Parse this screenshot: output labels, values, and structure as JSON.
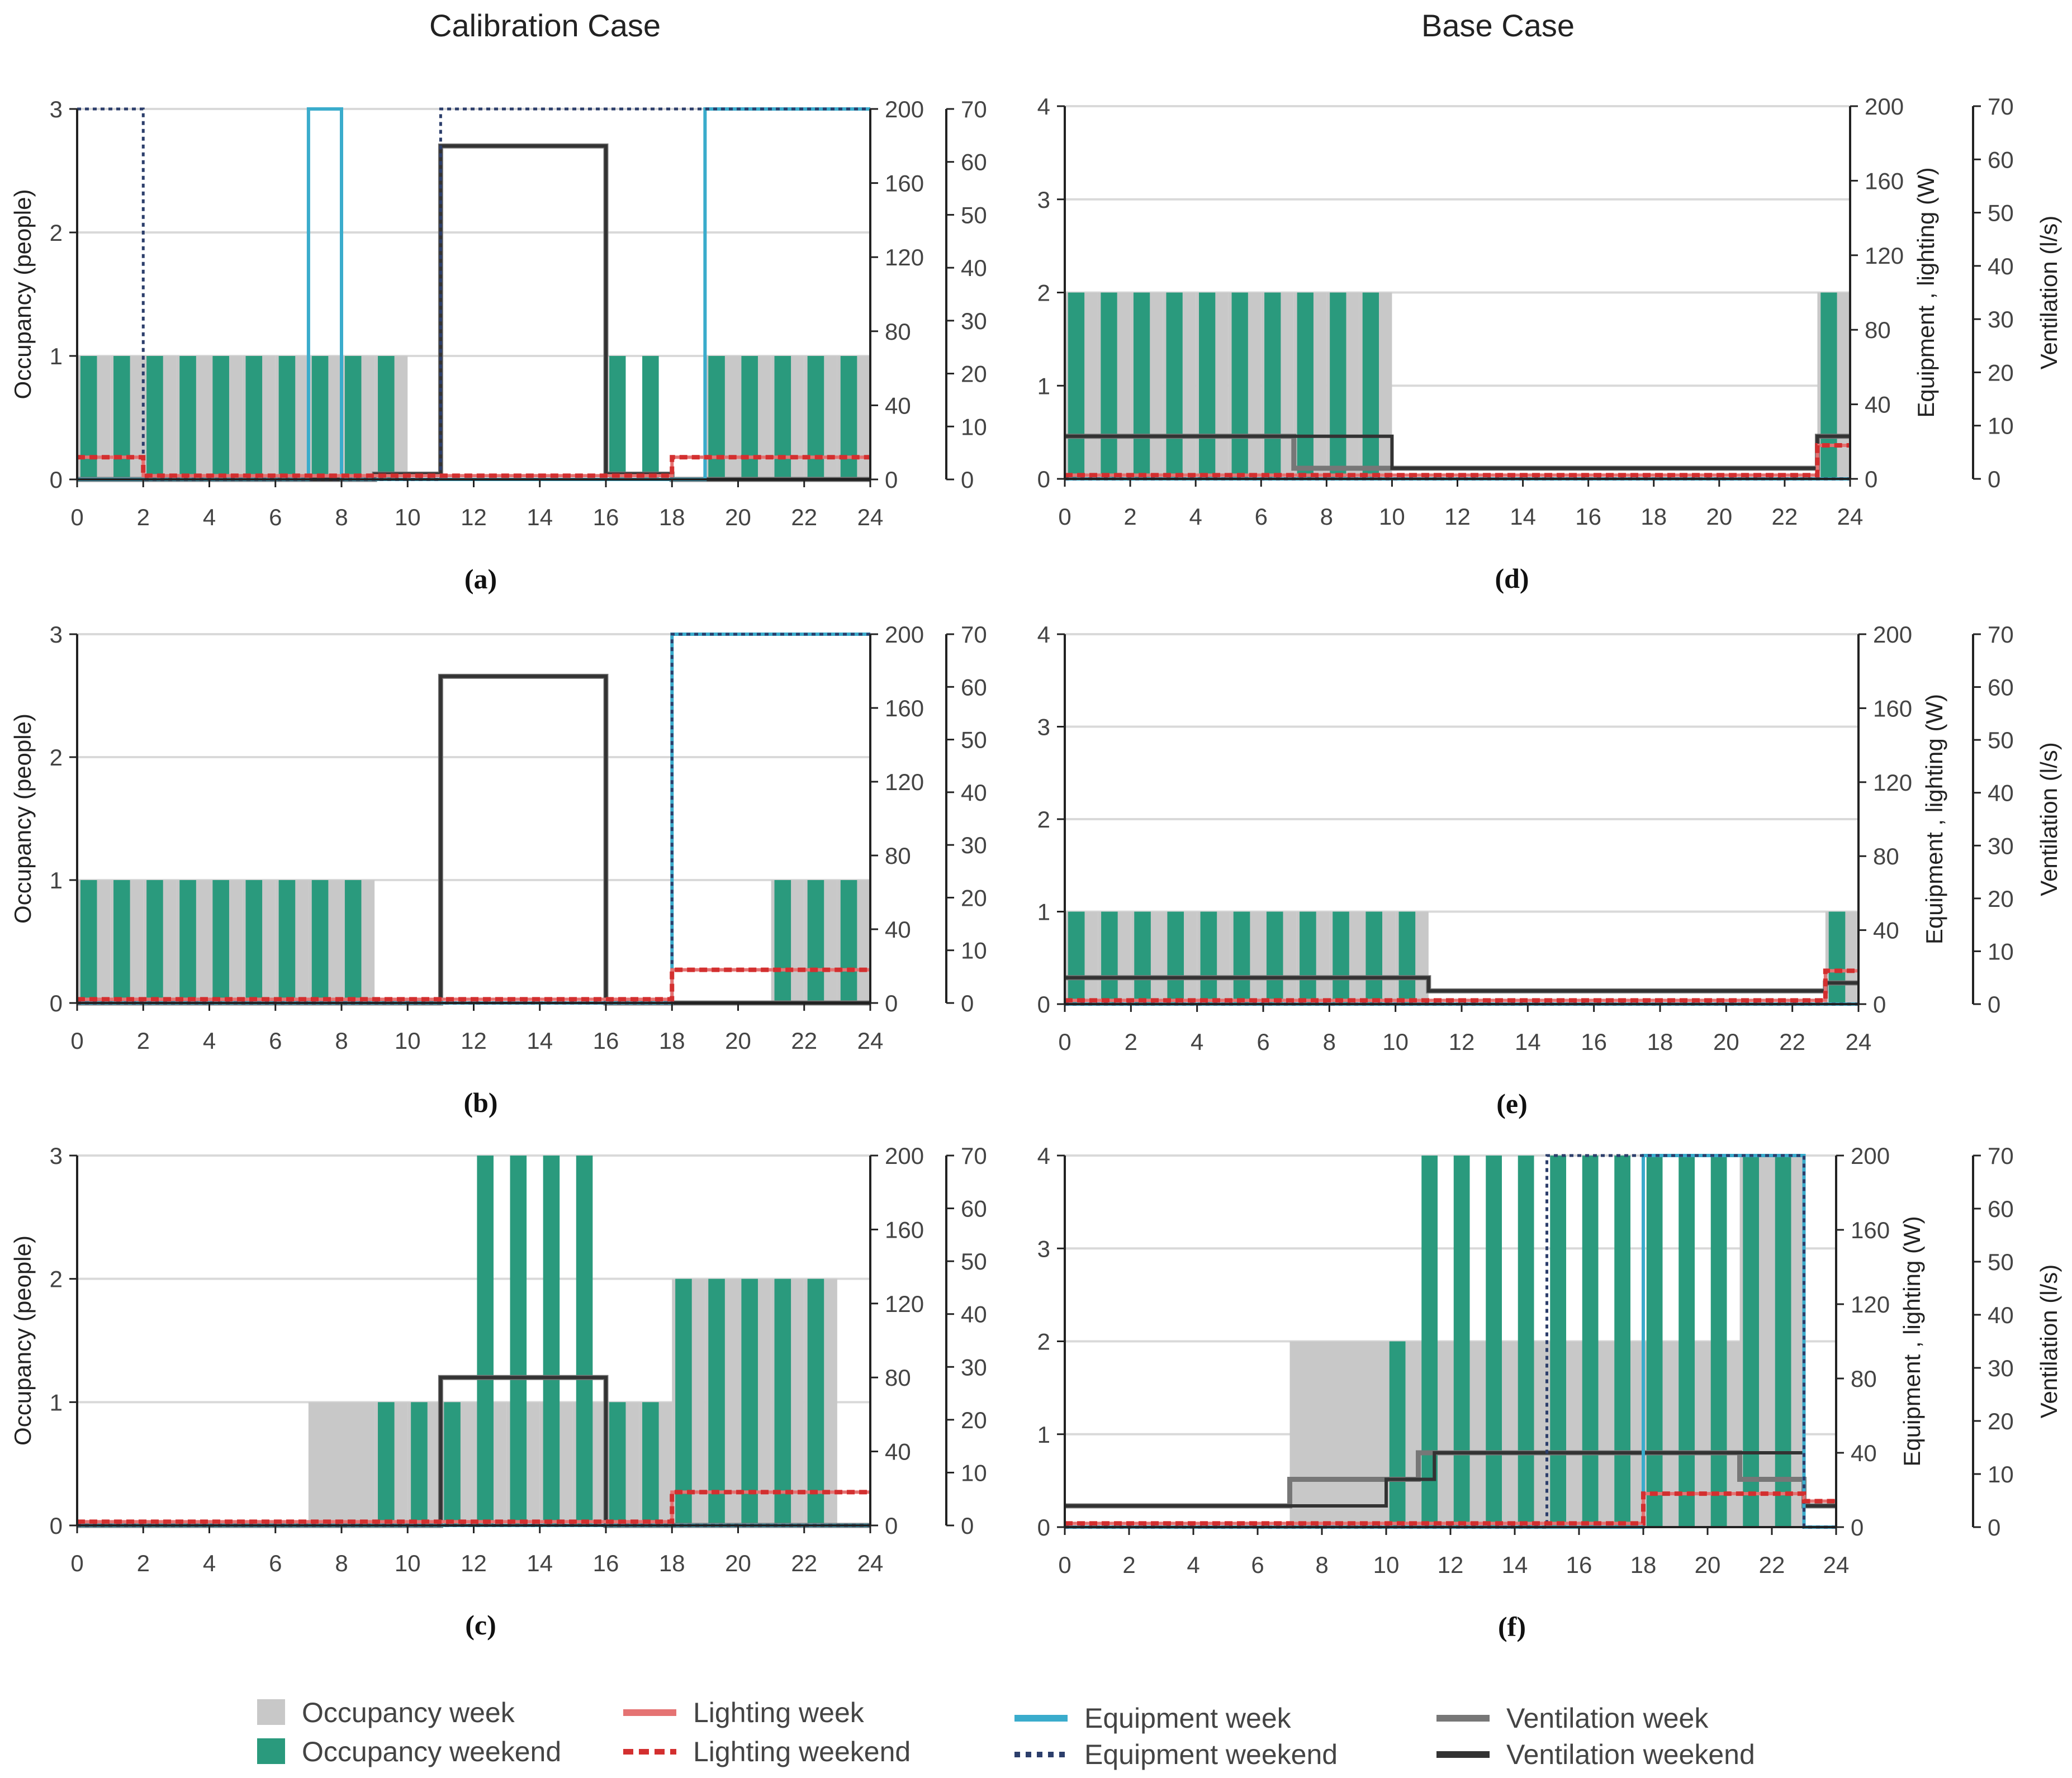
{
  "columns": {
    "left_title": "Calibration Case",
    "right_title": "Base Case"
  },
  "colors": {
    "occupancy_week": "#c8c8c8",
    "occupancy_weekend": "#2a9a7d",
    "lighting_week": "#e57373",
    "lighting_weekend": "#d32f2f",
    "equipment_week": "#3aaccc",
    "equipment_weekend": "#2c3e6b",
    "ventilation_week": "#777777",
    "ventilation_weekend": "#333333",
    "grid": "#d9d9d9"
  },
  "legend": [
    {
      "key": "occupancy_week",
      "label": "Occupancy week",
      "style": "box"
    },
    {
      "key": "occupancy_weekend",
      "label": "Occupancy weekend",
      "style": "box"
    },
    {
      "key": "lighting_week",
      "label": "Lighting week",
      "style": "line"
    },
    {
      "key": "lighting_weekend",
      "label": "Lighting weekend",
      "style": "dashed"
    },
    {
      "key": "equipment_week",
      "label": "Equipment week",
      "style": "line"
    },
    {
      "key": "equipment_weekend",
      "label": "Equipment weekend",
      "style": "dotted"
    },
    {
      "key": "ventilation_week",
      "label": "Ventilation week",
      "style": "line"
    },
    {
      "key": "ventilation_weekend",
      "label": "Ventilation weekend",
      "style": "line"
    }
  ],
  "chart_data": [
    {
      "id": "a",
      "label": "(a)",
      "type": "step-bar-combo",
      "ylabel": "Occupancy (people)",
      "y2label": "",
      "y3label": "",
      "xlim": [
        0,
        24
      ],
      "xticks": [
        0,
        2,
        4,
        6,
        8,
        10,
        12,
        14,
        16,
        18,
        20,
        22,
        24
      ],
      "ylim": [
        0,
        3
      ],
      "yticks": [
        0,
        1,
        2,
        3
      ],
      "y2lim": [
        0,
        200
      ],
      "y2ticks": [
        0,
        40,
        80,
        120,
        160,
        200
      ],
      "y3lim": [
        0,
        70
      ],
      "y3ticks": [
        0,
        10,
        20,
        30,
        40,
        50,
        60,
        70
      ],
      "occupancy_week": [
        1,
        1,
        1,
        1,
        1,
        1,
        1,
        1,
        1,
        1,
        0,
        0,
        0,
        0,
        0,
        0,
        0,
        0,
        0,
        1,
        1,
        1,
        1,
        1
      ],
      "occupancy_weekend": [
        1,
        1,
        1,
        1,
        1,
        1,
        1,
        1,
        1,
        1,
        0,
        0,
        0,
        0,
        0,
        0,
        1,
        1,
        0,
        1,
        1,
        1,
        1,
        1
      ],
      "lighting_week": [
        [
          0,
          12
        ],
        [
          2,
          2
        ],
        [
          18,
          12
        ],
        [
          24,
          12
        ]
      ],
      "lighting_weekend": [
        [
          0,
          12
        ],
        [
          2,
          2
        ],
        [
          18,
          12
        ],
        [
          24,
          12
        ]
      ],
      "equipment_week": [
        [
          0,
          0
        ],
        [
          7,
          200
        ],
        [
          8,
          0
        ],
        [
          19,
          200
        ],
        [
          24,
          200
        ]
      ],
      "equipment_weekend": [
        [
          0,
          200
        ],
        [
          2,
          0
        ],
        [
          11,
          200
        ],
        [
          24,
          200
        ]
      ],
      "ventilation_week": [
        [
          0,
          0
        ],
        [
          9,
          1
        ],
        [
          11,
          63
        ],
        [
          16,
          1
        ],
        [
          18,
          0
        ],
        [
          24,
          0
        ]
      ],
      "ventilation_weekend": [
        [
          0,
          0
        ],
        [
          9,
          1
        ],
        [
          11,
          63
        ],
        [
          16,
          1
        ],
        [
          18,
          0
        ],
        [
          24,
          0
        ]
      ]
    },
    {
      "id": "b",
      "label": "(b)",
      "type": "step-bar-combo",
      "ylabel": "Occupancy (people)",
      "y2label": "",
      "y3label": "",
      "xlim": [
        0,
        24
      ],
      "xticks": [
        0,
        2,
        4,
        6,
        8,
        10,
        12,
        14,
        16,
        18,
        20,
        22,
        24
      ],
      "ylim": [
        0,
        3
      ],
      "yticks": [
        0,
        1,
        2,
        3
      ],
      "y2lim": [
        0,
        200
      ],
      "y2ticks": [
        0,
        40,
        80,
        120,
        160,
        200
      ],
      "y3lim": [
        0,
        70
      ],
      "y3ticks": [
        0,
        10,
        20,
        30,
        40,
        50,
        60,
        70
      ],
      "occupancy_week": [
        1,
        1,
        1,
        1,
        1,
        1,
        1,
        1,
        1,
        0,
        0,
        0,
        0,
        0,
        0,
        0,
        0,
        0,
        0,
        0,
        0,
        1,
        1,
        1
      ],
      "occupancy_weekend": [
        1,
        1,
        1,
        1,
        1,
        1,
        1,
        1,
        1,
        0,
        0,
        0,
        0,
        0,
        0,
        0,
        0,
        0,
        0,
        0,
        0,
        1,
        1,
        1
      ],
      "lighting_week": [
        [
          0,
          2
        ],
        [
          18,
          18
        ],
        [
          24,
          18
        ]
      ],
      "lighting_weekend": [
        [
          0,
          2
        ],
        [
          18,
          18
        ],
        [
          24,
          18
        ]
      ],
      "equipment_week": [
        [
          0,
          0
        ],
        [
          18,
          200
        ],
        [
          24,
          200
        ]
      ],
      "equipment_weekend": [
        [
          0,
          0
        ],
        [
          18,
          200
        ],
        [
          24,
          200
        ]
      ],
      "ventilation_week": [
        [
          0,
          0
        ],
        [
          11,
          62
        ],
        [
          16,
          0
        ],
        [
          24,
          0
        ]
      ],
      "ventilation_weekend": [
        [
          0,
          0
        ],
        [
          11,
          62
        ],
        [
          16,
          0
        ],
        [
          24,
          0
        ]
      ]
    },
    {
      "id": "c",
      "label": "(c)",
      "type": "step-bar-combo",
      "ylabel": "Occupancy (people)",
      "y2label": "",
      "y3label": "",
      "xlim": [
        0,
        24
      ],
      "xticks": [
        0,
        2,
        4,
        6,
        8,
        10,
        12,
        14,
        16,
        18,
        20,
        22,
        24
      ],
      "ylim": [
        0,
        3
      ],
      "yticks": [
        0,
        1,
        2,
        3
      ],
      "y2lim": [
        0,
        200
      ],
      "y2ticks": [
        0,
        40,
        80,
        120,
        160,
        200
      ],
      "y3lim": [
        0,
        70
      ],
      "y3ticks": [
        0,
        10,
        20,
        30,
        40,
        50,
        60,
        70
      ],
      "occupancy_week": [
        0,
        0,
        0,
        0,
        0,
        0,
        0,
        1,
        1,
        1,
        1,
        1,
        1,
        1,
        1,
        1,
        1,
        1,
        2,
        2,
        2,
        2,
        2,
        0
      ],
      "occupancy_weekend": [
        0,
        0,
        0,
        0,
        0,
        0,
        0,
        0,
        0,
        1,
        1,
        1,
        3,
        3,
        3,
        3,
        1,
        1,
        2,
        2,
        2,
        2,
        2,
        0
      ],
      "lighting_week": [
        [
          0,
          2
        ],
        [
          18,
          18
        ],
        [
          24,
          18
        ]
      ],
      "lighting_weekend": [
        [
          0,
          2
        ],
        [
          18,
          18
        ],
        [
          24,
          18
        ]
      ],
      "equipment_week": [
        [
          0,
          0
        ],
        [
          24,
          0
        ]
      ],
      "equipment_weekend": [
        [
          0,
          0
        ],
        [
          24,
          0
        ]
      ],
      "ventilation_week": [
        [
          0,
          0
        ],
        [
          11,
          28
        ],
        [
          16,
          0
        ],
        [
          24,
          0
        ]
      ],
      "ventilation_weekend": [
        [
          0,
          0
        ],
        [
          11,
          28
        ],
        [
          16,
          0
        ],
        [
          24,
          0
        ]
      ]
    },
    {
      "id": "d",
      "label": "(d)",
      "type": "step-bar-combo",
      "ylabel": "",
      "y2label": "Equipment , lighting (W)",
      "y3label": "Ventilation (l/s)",
      "xlim": [
        0,
        24
      ],
      "xticks": [
        0,
        2,
        4,
        6,
        8,
        10,
        12,
        14,
        16,
        18,
        20,
        22,
        24
      ],
      "ylim": [
        0,
        4
      ],
      "yticks": [
        0,
        1,
        2,
        3,
        4
      ],
      "y2lim": [
        0,
        200
      ],
      "y2ticks": [
        0,
        40,
        80,
        120,
        160,
        200
      ],
      "y3lim": [
        0,
        70
      ],
      "y3ticks": [
        0,
        10,
        20,
        30,
        40,
        50,
        60,
        70
      ],
      "occupancy_week": [
        2,
        2,
        2,
        2,
        2,
        2,
        2,
        2,
        2,
        2,
        0,
        0,
        0,
        0,
        0,
        0,
        0,
        0,
        0,
        0,
        0,
        0,
        0,
        2
      ],
      "occupancy_weekend": [
        2,
        2,
        2,
        2,
        2,
        2,
        2,
        2,
        2,
        2,
        0,
        0,
        0,
        0,
        0,
        0,
        0,
        0,
        0,
        0,
        0,
        0,
        0,
        2
      ],
      "lighting_week": [
        [
          0,
          2
        ],
        [
          23,
          18
        ],
        [
          24,
          18
        ]
      ],
      "lighting_weekend": [
        [
          0,
          2
        ],
        [
          23,
          18
        ],
        [
          24,
          18
        ]
      ],
      "equipment_week": [
        [
          0,
          0
        ],
        [
          24,
          0
        ]
      ],
      "equipment_weekend": [
        [
          0,
          0
        ],
        [
          24,
          0
        ]
      ],
      "ventilation_week": [
        [
          0,
          8
        ],
        [
          7,
          2
        ],
        [
          23,
          8
        ],
        [
          24,
          8
        ]
      ],
      "ventilation_weekend": [
        [
          0,
          8
        ],
        [
          10,
          2
        ],
        [
          23,
          8
        ],
        [
          24,
          8
        ]
      ]
    },
    {
      "id": "e",
      "label": "(e)",
      "type": "step-bar-combo",
      "ylabel": "",
      "y2label": "Equipment , lighting (W)",
      "y3label": "Ventilation (l/s)",
      "xlim": [
        0,
        24
      ],
      "xticks": [
        0,
        2,
        4,
        6,
        8,
        10,
        12,
        14,
        16,
        18,
        20,
        22,
        24
      ],
      "ylim": [
        0,
        4
      ],
      "yticks": [
        0,
        1,
        2,
        3,
        4
      ],
      "y2lim": [
        0,
        200
      ],
      "y2ticks": [
        0,
        40,
        80,
        120,
        160,
        200
      ],
      "y3lim": [
        0,
        70
      ],
      "y3ticks": [
        0,
        10,
        20,
        30,
        40,
        50,
        60,
        70
      ],
      "occupancy_week": [
        1,
        1,
        1,
        1,
        1,
        1,
        1,
        1,
        1,
        1,
        1,
        0,
        0,
        0,
        0,
        0,
        0,
        0,
        0,
        0,
        0,
        0,
        0,
        1
      ],
      "occupancy_weekend": [
        1,
        1,
        1,
        1,
        1,
        1,
        1,
        1,
        1,
        1,
        1,
        0,
        0,
        0,
        0,
        0,
        0,
        0,
        0,
        0,
        0,
        0,
        0,
        1
      ],
      "lighting_week": [
        [
          0,
          2
        ],
        [
          23,
          18
        ],
        [
          24,
          18
        ]
      ],
      "lighting_weekend": [
        [
          0,
          2
        ],
        [
          23,
          18
        ],
        [
          24,
          18
        ]
      ],
      "equipment_week": [
        [
          0,
          0
        ],
        [
          24,
          0
        ]
      ],
      "equipment_weekend": [
        [
          0,
          0
        ],
        [
          24,
          0
        ]
      ],
      "ventilation_week": [
        [
          0,
          5
        ],
        [
          11,
          2.5
        ],
        [
          23,
          4
        ],
        [
          24,
          4
        ]
      ],
      "ventilation_weekend": [
        [
          0,
          5
        ],
        [
          11,
          2.5
        ],
        [
          23,
          4
        ],
        [
          24,
          4
        ]
      ]
    },
    {
      "id": "f",
      "label": "(f)",
      "type": "step-bar-combo",
      "ylabel": "",
      "y2label": "Equipment , lighting (W)",
      "y3label": "Ventilation (l/s)",
      "xlim": [
        0,
        24
      ],
      "xticks": [
        0,
        2,
        4,
        6,
        8,
        10,
        12,
        14,
        16,
        18,
        20,
        22,
        24
      ],
      "ylim": [
        0,
        4
      ],
      "yticks": [
        0,
        1,
        2,
        3,
        4
      ],
      "y2lim": [
        0,
        200
      ],
      "y2ticks": [
        0,
        40,
        80,
        120,
        160,
        200
      ],
      "y3lim": [
        0,
        70
      ],
      "y3ticks": [
        0,
        10,
        20,
        30,
        40,
        50,
        60,
        70
      ],
      "occupancy_week": [
        0,
        0,
        0,
        0,
        0,
        0,
        0,
        2,
        2,
        2,
        2,
        2,
        2,
        2,
        2,
        2,
        2,
        2,
        2,
        2,
        2,
        4,
        4,
        0
      ],
      "occupancy_weekend": [
        0,
        0,
        0,
        0,
        0,
        0,
        0,
        0,
        0,
        0,
        2,
        4,
        4,
        4,
        4,
        4,
        4,
        4,
        4,
        4,
        4,
        4,
        4,
        0
      ],
      "lighting_week": [
        [
          0,
          2
        ],
        [
          18,
          18
        ],
        [
          23,
          14
        ],
        [
          24,
          14
        ]
      ],
      "lighting_weekend": [
        [
          0,
          2
        ],
        [
          18,
          18
        ],
        [
          23,
          14
        ],
        [
          24,
          14
        ]
      ],
      "equipment_week": [
        [
          0,
          0
        ],
        [
          18,
          200
        ],
        [
          23,
          0
        ],
        [
          24,
          0
        ]
      ],
      "equipment_weekend": [
        [
          0,
          0
        ],
        [
          15,
          200
        ],
        [
          23,
          0
        ],
        [
          24,
          0
        ]
      ],
      "ventilation_week": [
        [
          0,
          4
        ],
        [
          7,
          9
        ],
        [
          10,
          9
        ],
        [
          11,
          14
        ],
        [
          21,
          9
        ],
        [
          23,
          4
        ],
        [
          24,
          4
        ]
      ],
      "ventilation_weekend": [
        [
          0,
          4
        ],
        [
          7,
          4
        ],
        [
          10,
          9
        ],
        [
          11.5,
          14
        ],
        [
          23,
          4
        ],
        [
          24,
          4
        ]
      ]
    }
  ]
}
